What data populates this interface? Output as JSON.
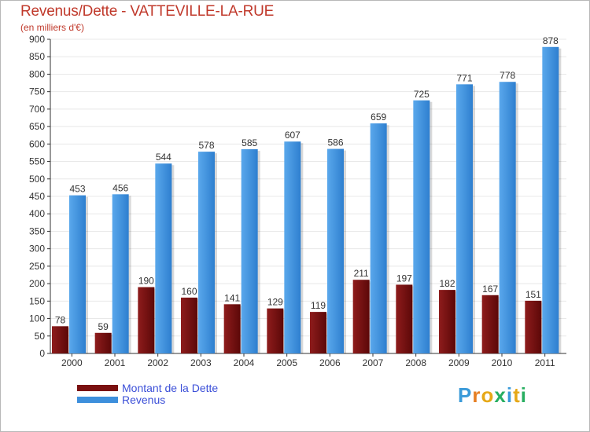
{
  "colors": {
    "title": "#c0392b",
    "dette": "#7a1010",
    "revenus": "#3d8fdc",
    "legend_text": "#3b4fd8",
    "grid": "#e8e8e8",
    "axis": "#333333"
  },
  "logo": {
    "text": "Proxiti",
    "letter_colors": [
      "#3a9ad9",
      "#e67e22",
      "#e6a817",
      "#27ae60",
      "#3a9ad9",
      "#e6a817",
      "#27ae60"
    ]
  },
  "chart_data": {
    "type": "bar",
    "title": "Revenus/Dette - VATTEVILLE-LA-RUE",
    "subtitle": "(en milliers d'€)",
    "categories": [
      "2000",
      "2001",
      "2002",
      "2003",
      "2004",
      "2005",
      "2006",
      "2007",
      "2008",
      "2009",
      "2010",
      "2011"
    ],
    "series": [
      {
        "name": "Montant de la Dette",
        "values": [
          78,
          59,
          190,
          160,
          141,
          129,
          119,
          211,
          197,
          182,
          167,
          151
        ]
      },
      {
        "name": "Revenus",
        "values": [
          453,
          456,
          544,
          578,
          585,
          607,
          586,
          659,
          725,
          771,
          778,
          878
        ]
      }
    ],
    "ylim": [
      0,
      900
    ],
    "yticks": [
      0,
      50,
      100,
      150,
      200,
      250,
      300,
      350,
      400,
      450,
      500,
      550,
      600,
      650,
      700,
      750,
      800,
      850,
      900
    ],
    "grid": true,
    "legend_position": "bottom-left",
    "xlabel": "",
    "ylabel": ""
  }
}
